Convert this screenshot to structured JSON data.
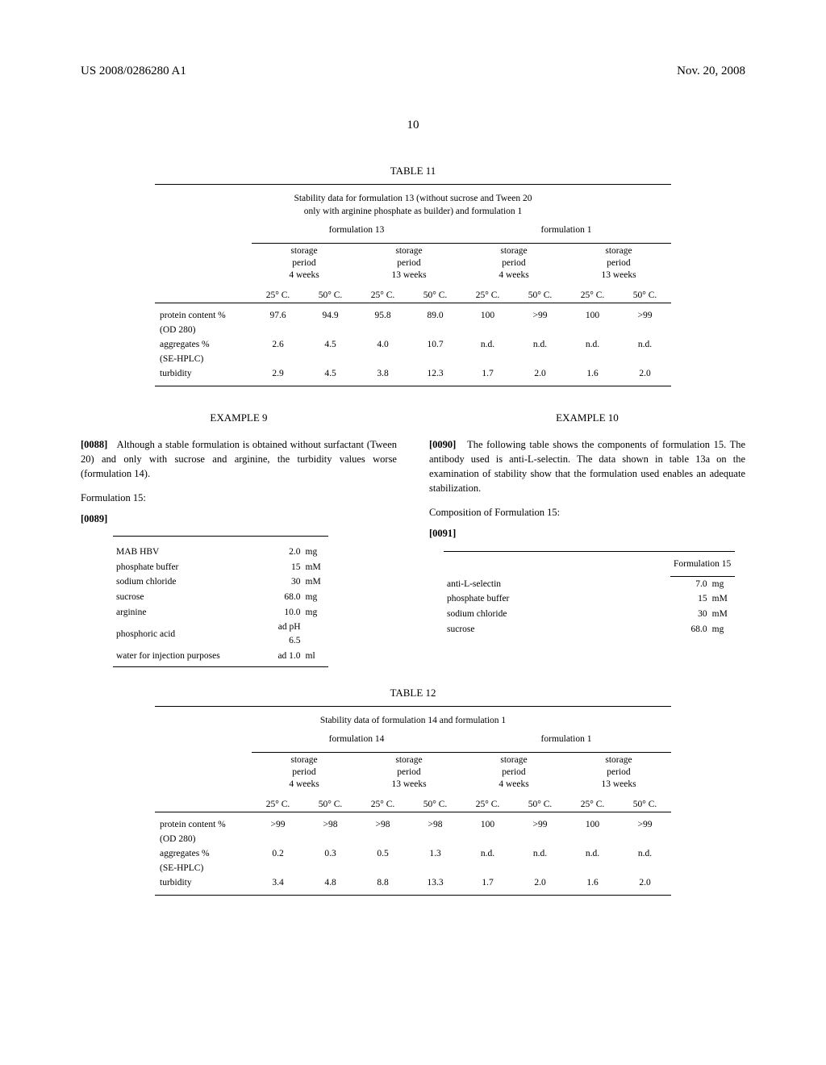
{
  "header": {
    "left": "US 2008/0286280 A1",
    "right": "Nov. 20, 2008"
  },
  "page_number": "10",
  "table11": {
    "caption": "TABLE 11",
    "title_l1": "Stability data for formulation 13 (without sucrose and Tween 20",
    "title_l2": "only with arginine phosphate as builder) and formulation 1",
    "group_a": "formulation 13",
    "group_b": "formulation 1",
    "sub_a": "storage",
    "sub_b": "period",
    "sub_4w": "4 weeks",
    "sub_13w": "13 weeks",
    "temp25": "25° C.",
    "temp50": "50° C.",
    "rows": [
      {
        "label_l1": "protein content %",
        "label_l2": "(OD 280)",
        "v": [
          "97.6",
          "94.9",
          "95.8",
          "89.0",
          "100",
          ">99",
          "100",
          ">99"
        ]
      },
      {
        "label_l1": "aggregates %",
        "label_l2": "(SE-HPLC)",
        "v": [
          "2.6",
          "4.5",
          "4.0",
          "10.7",
          "n.d.",
          "n.d.",
          "n.d.",
          "n.d."
        ]
      },
      {
        "label_l1": "turbidity",
        "label_l2": "",
        "v": [
          "2.9",
          "4.5",
          "3.8",
          "12.3",
          "1.7",
          "2.0",
          "1.6",
          "2.0"
        ]
      }
    ]
  },
  "ex9": {
    "heading": "EXAMPLE 9",
    "p88_num": "[0088]",
    "p88": "Although a stable formulation is obtained without surfactant (Tween 20) and only with sucrose and arginine, the turbidity values worse (formulation 14).",
    "form_label": "Formulation 15:",
    "p89_num": "[0089]",
    "comp": [
      {
        "n": "MAB HBV",
        "v": "2.0",
        "u": "mg"
      },
      {
        "n": "phosphate buffer",
        "v": "15",
        "u": "mM"
      },
      {
        "n": "sodium chloride",
        "v": "30",
        "u": "mM"
      },
      {
        "n": "sucrose",
        "v": "68.0",
        "u": "mg"
      },
      {
        "n": "arginine",
        "v": "10.0",
        "u": "mg"
      },
      {
        "n": "phosphoric acid",
        "v": "ad pH 6.5",
        "u": ""
      },
      {
        "n": "water for injection purposes",
        "v": "ad 1.0",
        "u": "ml"
      }
    ]
  },
  "ex10": {
    "heading": "EXAMPLE 10",
    "p90_num": "[0090]",
    "p90": "The following table shows the components of formulation 15. The antibody used is anti-L-selectin. The data shown in table 13a on the examination of stability show that the formulation used enables an adequate stabilization.",
    "comp_label": "Composition of Formulation 15:",
    "p91_num": "[0091]",
    "form_hdr": "Formulation 15",
    "comp": [
      {
        "n": "anti-L-selectin",
        "v": "7.0",
        "u": "mg"
      },
      {
        "n": "phosphate buffer",
        "v": "15",
        "u": "mM"
      },
      {
        "n": "sodium chloride",
        "v": "30",
        "u": "mM"
      },
      {
        "n": "sucrose",
        "v": "68.0",
        "u": "mg"
      }
    ]
  },
  "table12": {
    "caption": "TABLE 12",
    "title": "Stability data of formulation 14 and formulation 1",
    "group_a": "formulation 14",
    "group_b": "formulation 1",
    "rows": [
      {
        "label_l1": "protein content %",
        "label_l2": "(OD 280)",
        "v": [
          ">99",
          ">98",
          ">98",
          ">98",
          "100",
          ">99",
          "100",
          ">99"
        ]
      },
      {
        "label_l1": "aggregates %",
        "label_l2": "(SE-HPLC)",
        "v": [
          "0.2",
          "0.3",
          "0.5",
          "1.3",
          "n.d.",
          "n.d.",
          "n.d.",
          "n.d."
        ]
      },
      {
        "label_l1": "turbidity",
        "label_l2": "",
        "v": [
          "3.4",
          "4.8",
          "8.8",
          "13.3",
          "1.7",
          "2.0",
          "1.6",
          "2.0"
        ]
      }
    ]
  }
}
